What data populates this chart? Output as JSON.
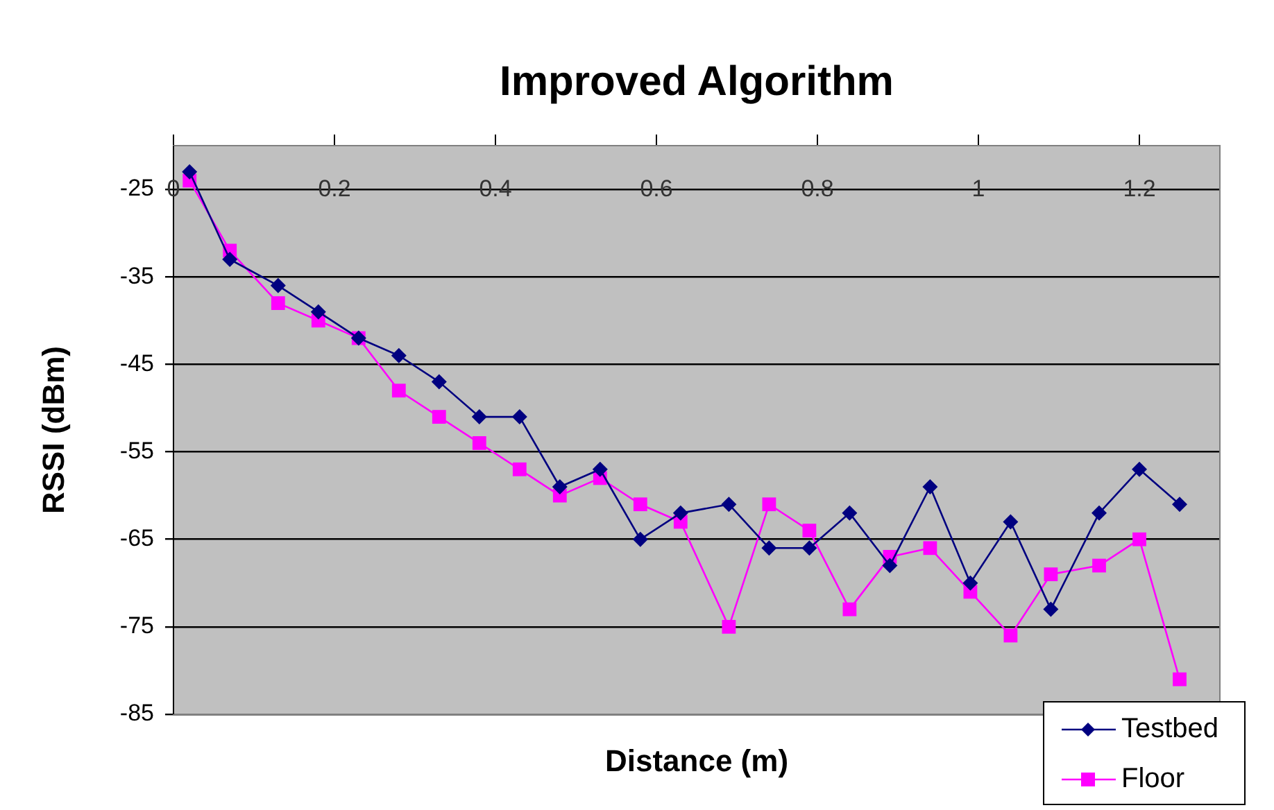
{
  "chart_data": {
    "type": "line",
    "title": "Improved Algorithm",
    "xlabel": "Distance (m)",
    "ylabel": "RSSI (dBm)",
    "x": [
      0.02,
      0.07,
      0.13,
      0.18,
      0.23,
      0.28,
      0.33,
      0.38,
      0.43,
      0.48,
      0.53,
      0.58,
      0.63,
      0.69,
      0.74,
      0.79,
      0.84,
      0.89,
      0.94,
      0.99,
      1.04,
      1.09,
      1.15,
      1.2,
      1.25
    ],
    "series": [
      {
        "name": "Testbed",
        "color": "#000080",
        "marker": "diamond",
        "values": [
          -23,
          -33,
          -36,
          -39,
          -42,
          -44,
          -47,
          -51,
          -51,
          -59,
          -57,
          -65,
          -62,
          -61,
          -66,
          -66,
          -62,
          -68,
          -59,
          -70,
          -63,
          -73,
          -62,
          -57,
          -61
        ]
      },
      {
        "name": "Floor",
        "color": "#ff00ff",
        "marker": "square",
        "values": [
          -24,
          -32,
          -38,
          -40,
          -42,
          -48,
          -51,
          -54,
          -57,
          -60,
          -58,
          -61,
          -63,
          -75,
          -61,
          -64,
          -73,
          -67,
          -66,
          -71,
          -76,
          -69,
          -68,
          -65,
          -81
        ]
      }
    ],
    "xlim": [
      0,
      1.3
    ],
    "xticks": [
      0,
      0.2,
      0.4,
      0.6,
      0.8,
      1,
      1.2
    ],
    "ylim": [
      -85,
      -20
    ],
    "yticks": [
      -25,
      -35,
      -45,
      -55,
      -65,
      -75,
      -85
    ],
    "grid": "y",
    "legend": "bottom right",
    "line_style": "solid"
  }
}
